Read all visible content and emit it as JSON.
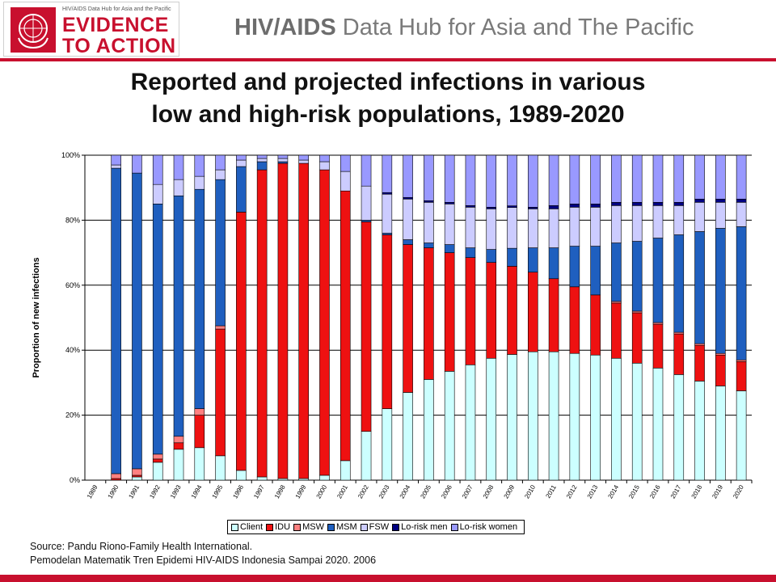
{
  "header": {
    "logo_small_text": "HIV/AIDS Data Hub for Asia and the Pacific",
    "logo_line1": "EVIDENCE",
    "logo_line2": "TO ACTION",
    "logo_emblem": "un-emblem-icon",
    "title_bold": "HIV/AIDS",
    "title_rest": " Data Hub for Asia and The Pacific"
  },
  "slide": {
    "title_line1": "Reported and projected infections in various",
    "title_line2": "low and high-risk populations, 1989-2020"
  },
  "source": {
    "line1": "Source: Pandu Riono-Family Health International.",
    "line2": "Pemodelan Matematik Tren Epidemi HIV-AIDS Indonesia Sampai 2020. 2006"
  },
  "colors": {
    "brand_red": "#c8102e",
    "Client": "#ccffff",
    "IDU": "#ee1111",
    "MSW": "#ff8080",
    "MSM": "#1f5fbf",
    "FSW": "#ccccff",
    "Lo-risk men": "#000080",
    "Lo-risk women": "#9999ff"
  },
  "chart_data": {
    "type": "bar",
    "stacked": true,
    "percent_stacked": true,
    "title": "",
    "xlabel": "",
    "ylabel": "Proportion of new infections",
    "ylim": [
      0,
      100
    ],
    "yticks": [
      "0%",
      "20%",
      "40%",
      "60%",
      "80%",
      "100%"
    ],
    "grid": true,
    "legend_position": "bottom",
    "categories": [
      "1989",
      "1990",
      "1991",
      "1992",
      "1993",
      "1994",
      "1995",
      "1996",
      "1997",
      "1998",
      "1999",
      "2000",
      "2001",
      "2002",
      "2003",
      "2004",
      "2005",
      "2006",
      "2007",
      "2008",
      "2009",
      "2010",
      "2011",
      "2012",
      "2013",
      "2014",
      "2015",
      "2016",
      "2017",
      "2018",
      "2019",
      "2020"
    ],
    "series": [
      {
        "name": "Client",
        "values": [
          0,
          0,
          1,
          5.5,
          9.5,
          10,
          7.5,
          3,
          1,
          0.5,
          0.5,
          1.5,
          6,
          15,
          22,
          27,
          31,
          33.5,
          35.5,
          37.5,
          38.5,
          39.5,
          39.5,
          39,
          38.5,
          37.5,
          36,
          34.5,
          32.5,
          30.5,
          29,
          27.5
        ]
      },
      {
        "name": "IDU",
        "values": [
          0,
          0.5,
          0.5,
          1,
          2,
          10,
          39,
          79.5,
          94.5,
          97,
          97,
          94,
          83,
          64.5,
          53.5,
          45.5,
          40.5,
          36.5,
          33,
          29.5,
          27,
          24.5,
          22.5,
          20.5,
          18.5,
          17,
          15.5,
          13.5,
          12.5,
          11,
          9.5,
          9
        ]
      },
      {
        "name": "MSW",
        "values": [
          0,
          1.5,
          2,
          1.5,
          2,
          2,
          1,
          0,
          0,
          0,
          0,
          0,
          0,
          0,
          0,
          0,
          0,
          0,
          0,
          0,
          0,
          0,
          0,
          0,
          0,
          0.5,
          0.5,
          0.5,
          0.5,
          0.5,
          0.5,
          0.5
        ]
      },
      {
        "name": "MSM",
        "values": [
          0,
          94,
          91,
          77,
          74,
          67.5,
          45,
          14,
          2.5,
          0.5,
          0,
          0,
          0,
          0.5,
          0.5,
          1.5,
          1.5,
          2.5,
          3,
          4,
          5.5,
          7.5,
          9.5,
          12.5,
          15,
          18,
          21.5,
          26,
          30,
          34.5,
          38.5,
          41
        ]
      },
      {
        "name": "FSW",
        "values": [
          0,
          1,
          0,
          6,
          5,
          4,
          3,
          2,
          1,
          1,
          1,
          2.5,
          6,
          10.5,
          12,
          12.5,
          12.5,
          12.5,
          12.5,
          12.5,
          12.5,
          12,
          12,
          12,
          12,
          11.5,
          11,
          10,
          9,
          9,
          8,
          7.5
        ]
      },
      {
        "name": "Lo-risk men",
        "values": [
          0,
          0,
          0,
          0,
          0,
          0,
          0,
          0,
          0,
          0,
          0,
          0,
          0,
          0,
          0.5,
          0.5,
          0.5,
          0.5,
          0.5,
          0.5,
          0.5,
          0.5,
          1,
          1,
          1,
          1,
          1,
          1,
          1,
          1,
          1,
          1
        ]
      },
      {
        "name": "Lo-risk women",
        "values": [
          0,
          3,
          5.5,
          9,
          7.5,
          6.5,
          4.5,
          1.5,
          1,
          1,
          1.5,
          2,
          5,
          9.5,
          11.5,
          13,
          14,
          14.5,
          15.5,
          16,
          15.5,
          16,
          15.5,
          15,
          15,
          14.5,
          14.5,
          14.5,
          14.5,
          13.5,
          13.5,
          13.5
        ]
      }
    ]
  }
}
